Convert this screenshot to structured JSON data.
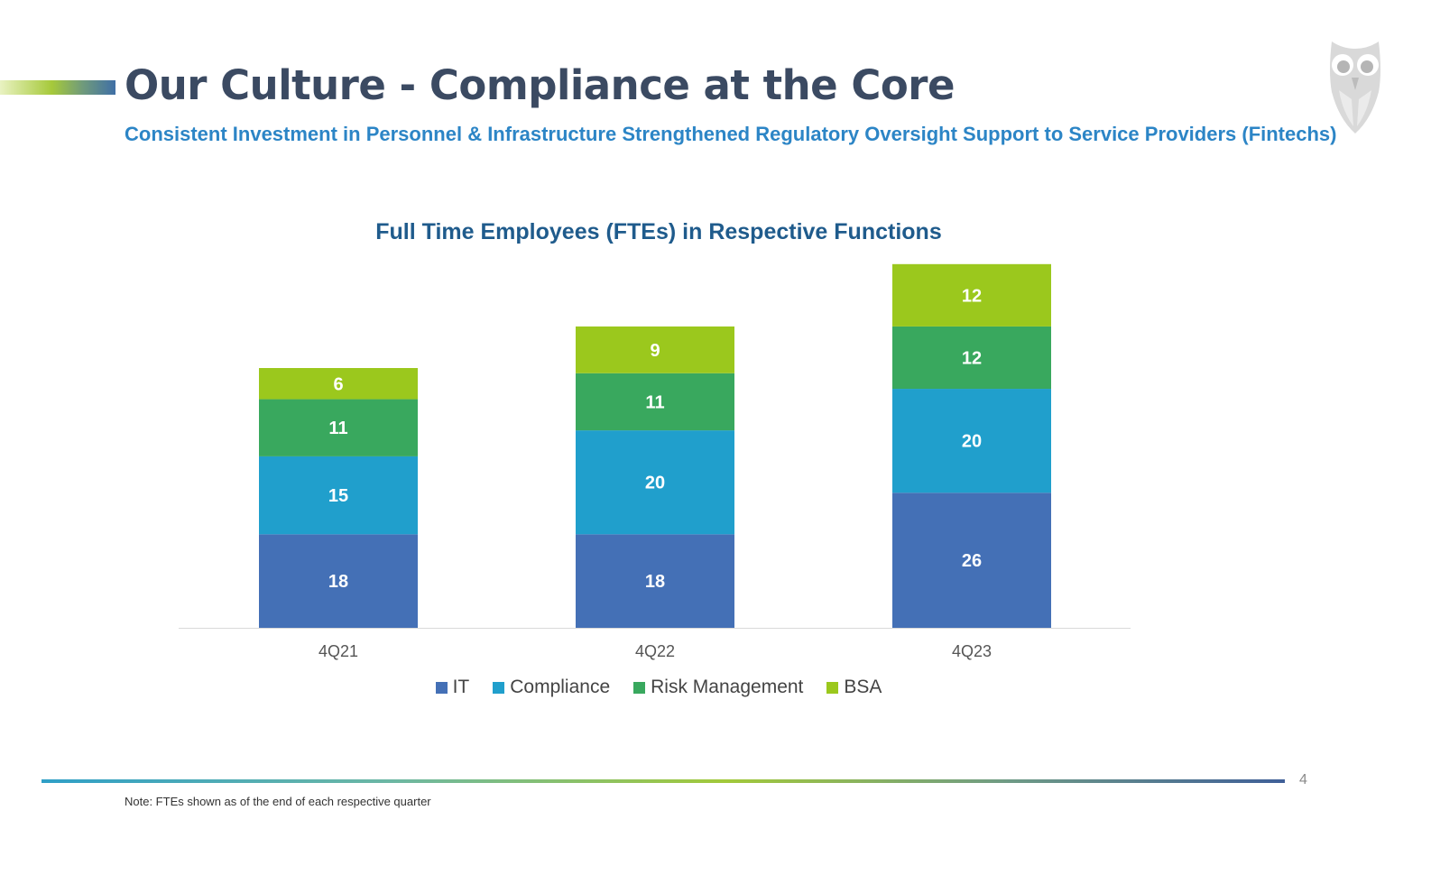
{
  "slide": {
    "title": "Our Culture - Compliance at the Core",
    "subtitle": "Consistent Investment in Personnel & Infrastructure Strengthened Regulatory Oversight Support to Service Providers (Fintechs)",
    "page_number": "4",
    "footnote": "Note: FTEs shown as of the end of each respective quarter",
    "logo_icon": "owl-logo-icon"
  },
  "colors": {
    "title": "#3b4a62",
    "subtitle": "#2c85c6",
    "chart_title": "#1f5b8c",
    "it": "#4470b6",
    "compliance": "#209fcc",
    "risk_management": "#39a85e",
    "bsa": "#9bc81d"
  },
  "chart_data": {
    "type": "bar",
    "stacked": true,
    "title": "Full Time Employees (FTEs) in Respective Functions",
    "categories": [
      "4Q21",
      "4Q22",
      "4Q23"
    ],
    "series": [
      {
        "name": "IT",
        "color": "#4470b6",
        "values": [
          18,
          18,
          26
        ]
      },
      {
        "name": "Compliance",
        "color": "#209fcc",
        "values": [
          15,
          20,
          20
        ]
      },
      {
        "name": "Risk Management",
        "color": "#39a85e",
        "values": [
          11,
          11,
          12
        ]
      },
      {
        "name": "BSA",
        "color": "#9bc81d",
        "values": [
          6,
          9,
          12
        ]
      }
    ],
    "xlabel": "",
    "ylabel": "",
    "ylim": [
      0,
      70
    ],
    "grid": false,
    "legend": "bottom",
    "data_labels": true
  }
}
